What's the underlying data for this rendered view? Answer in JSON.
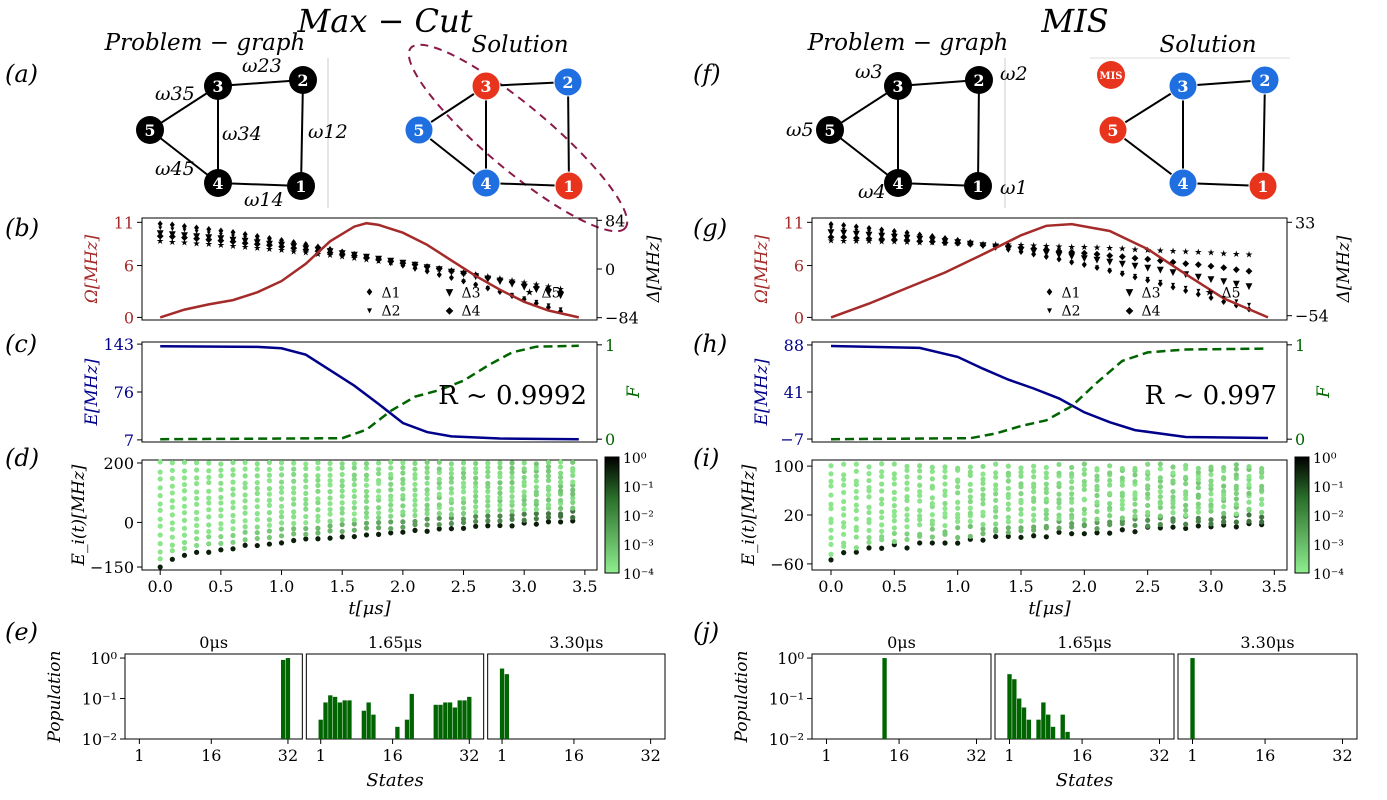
{
  "figure": {
    "left_title": "Max − Cut",
    "right_title": "MIS",
    "problem_graph_label": "Problem − graph",
    "solution_label": "Solution",
    "panel_labels": [
      "(a)",
      "(b)",
      "(c)",
      "(d)",
      "(e)",
      "(f)",
      "(g)",
      "(h)",
      "(i)",
      "(j)"
    ],
    "mis_badge": "MIS"
  },
  "graph_maxcut": {
    "nodes": [
      "1",
      "2",
      "3",
      "4",
      "5"
    ],
    "edges": [
      [
        "1",
        "2"
      ],
      [
        "2",
        "3"
      ],
      [
        "3",
        "4"
      ],
      [
        "3",
        "5"
      ],
      [
        "4",
        "5"
      ],
      [
        "1",
        "4"
      ]
    ],
    "edge_labels": [
      "ω12",
      "ω23",
      "ω34",
      "ω35",
      "ω45",
      "ω14"
    ],
    "solution_colors": {
      "1": "red",
      "2": "blue",
      "3": "red",
      "4": "blue",
      "5": "blue"
    }
  },
  "graph_mis": {
    "nodes": [
      "1",
      "2",
      "3",
      "4",
      "5"
    ],
    "edges": [
      [
        "1",
        "2"
      ],
      [
        "2",
        "3"
      ],
      [
        "3",
        "4"
      ],
      [
        "3",
        "5"
      ],
      [
        "4",
        "5"
      ],
      [
        "1",
        "4"
      ]
    ],
    "node_labels": [
      "ω1",
      "ω2",
      "ω3",
      "ω4",
      "ω5"
    ],
    "solution_colors": {
      "1": "red",
      "2": "blue",
      "3": "blue",
      "4": "blue",
      "5": "red"
    }
  },
  "colors": {
    "omega": "#a52a2a",
    "energy": "#00008b",
    "fidelity": "#006400",
    "bar": "#006400",
    "node_black": "#000000",
    "node_red": "#e8341c",
    "node_blue": "#1f6fe0",
    "ellipse": "#8b1a4a"
  },
  "chart_data": [
    {
      "id": "b",
      "type": "line",
      "left_axis": {
        "label": "Ω[MHz]",
        "ticks": [
          "0",
          "6",
          "11"
        ],
        "range": [
          0,
          11
        ]
      },
      "right_axis": {
        "label": "Δ[MHz]",
        "ticks": [
          "−84",
          "0",
          "84"
        ],
        "range": [
          -84,
          84
        ]
      },
      "x": {
        "range": [
          0,
          3.5
        ]
      },
      "omega_curve": {
        "x": [
          0,
          0.2,
          0.4,
          0.6,
          0.8,
          1.0,
          1.2,
          1.4,
          1.6,
          1.7,
          1.8,
          2.0,
          2.2,
          2.4,
          2.6,
          2.8,
          3.0,
          3.2,
          3.45
        ],
        "y": [
          0,
          0.9,
          1.5,
          2.0,
          2.9,
          4.2,
          6.2,
          8.8,
          10.5,
          10.9,
          10.7,
          9.8,
          8.4,
          6.6,
          4.8,
          3.2,
          1.8,
          0.8,
          0
        ]
      },
      "legend": [
        "Δ1",
        "Δ2",
        "Δ3",
        "Δ4",
        "Δ5"
      ],
      "detuning_start": [
        78,
        72,
        62,
        58,
        48
      ],
      "detuning_end": [
        -84,
        -78,
        -52,
        -46,
        -40
      ]
    },
    {
      "id": "c",
      "type": "line",
      "left_axis": {
        "label": "E[MHz]",
        "ticks": [
          "7",
          "76",
          "143"
        ],
        "range": [
          7,
          143
        ]
      },
      "right_axis": {
        "label": "F",
        "ticks": [
          "0",
          "1"
        ],
        "range": [
          0,
          1
        ]
      },
      "annotation": "R ~ 0.9992",
      "energy": {
        "x": [
          0,
          0.8,
          1.0,
          1.2,
          1.4,
          1.6,
          1.8,
          2.0,
          2.2,
          2.4,
          2.8,
          3.45
        ],
        "y": [
          140,
          139,
          137,
          128,
          106,
          84,
          58,
          31,
          18,
          12,
          9,
          8
        ]
      },
      "fidelity": {
        "x": [
          0,
          1.5,
          1.7,
          1.9,
          2.1,
          2.3,
          2.5,
          2.7,
          2.9,
          3.1,
          3.45
        ],
        "y": [
          0,
          0.01,
          0.1,
          0.3,
          0.45,
          0.52,
          0.62,
          0.78,
          0.92,
          0.98,
          0.99
        ]
      }
    },
    {
      "id": "d",
      "type": "scatter",
      "ylabel": "E_i(t)[MHz]",
      "xlabel": "t[μs]",
      "y_ticks": [
        "−150",
        "0",
        "200"
      ],
      "y_range": [
        -150,
        200
      ],
      "x_ticks": [
        "0.0",
        "0.5",
        "1.0",
        "1.5",
        "2.0",
        "2.5",
        "3.0",
        "3.5"
      ],
      "x_range": [
        0,
        3.5
      ],
      "colorbar_ticks": [
        "10⁰",
        "10⁻¹",
        "10⁻²",
        "10⁻³",
        "10⁻⁴"
      ]
    },
    {
      "id": "e",
      "type": "bar",
      "ylabel": "Population",
      "xlabel": "States",
      "x_ticks": [
        "1",
        "16",
        "32"
      ],
      "y_ticks": [
        "10⁰",
        "10⁻¹",
        "10⁻²"
      ],
      "panels": [
        {
          "title": "0μs",
          "values": {
            "32": 1.0,
            "31": 0.9
          }
        },
        {
          "title": "1.65μs",
          "values": {
            "1": 0.03,
            "2": 0.08,
            "3": 0.12,
            "4": 0.11,
            "5": 0.08,
            "6": 0.09,
            "7": 0.09,
            "10": 0.05,
            "11": 0.08,
            "12": 0.04,
            "17": 0.02,
            "19": 0.03,
            "20": 0.13,
            "25": 0.07,
            "26": 0.07,
            "27": 0.08,
            "28": 0.08,
            "29": 0.06,
            "30": 0.09,
            "31": 0.09,
            "32": 0.11
          }
        },
        {
          "title": "3.30μs",
          "values": {
            "1": 0.55,
            "2": 0.4
          }
        }
      ]
    },
    {
      "id": "g",
      "type": "line",
      "left_axis": {
        "label": "Ω[MHz]",
        "ticks": [
          "0",
          "6",
          "11"
        ],
        "range": [
          0,
          11
        ]
      },
      "right_axis": {
        "label": "Δ[MHz]",
        "ticks": [
          "−54",
          "33"
        ],
        "range": [
          -54,
          33
        ]
      },
      "legend": [
        "Δ1",
        "Δ2",
        "Δ3",
        "Δ4",
        "Δ5"
      ],
      "omega_curve": {
        "x": [
          0,
          0.3,
          0.6,
          0.9,
          1.2,
          1.5,
          1.7,
          1.9,
          2.2,
          2.5,
          2.8,
          3.1,
          3.45
        ],
        "y": [
          0,
          1.6,
          3.4,
          5.2,
          7.3,
          9.5,
          10.6,
          10.8,
          10.0,
          7.9,
          5.0,
          2.2,
          0
        ]
      },
      "detuning_start": [
        31,
        28,
        24,
        20,
        16
      ],
      "detuning_end": [
        -54,
        -48,
        -30,
        -14,
        2
      ]
    },
    {
      "id": "h",
      "type": "line",
      "left_axis": {
        "label": "E[MHz]",
        "ticks": [
          "−7",
          "41",
          "88"
        ],
        "range": [
          -7,
          88
        ]
      },
      "right_axis": {
        "label": "F",
        "ticks": [
          "0",
          "1"
        ],
        "range": [
          0,
          1
        ]
      },
      "annotation": "R ~ 0.997",
      "energy": {
        "x": [
          0,
          0.7,
          1.0,
          1.2,
          1.4,
          1.6,
          1.8,
          2.0,
          2.2,
          2.4,
          2.8,
          3.45
        ],
        "y": [
          87,
          85,
          76,
          64,
          53,
          44,
          34,
          20,
          10,
          2,
          -5,
          -6
        ]
      },
      "fidelity": {
        "x": [
          0,
          1.1,
          1.3,
          1.5,
          1.7,
          1.9,
          2.1,
          2.3,
          2.5,
          2.8,
          3.45
        ],
        "y": [
          0,
          0.01,
          0.06,
          0.14,
          0.2,
          0.35,
          0.6,
          0.83,
          0.92,
          0.95,
          0.96
        ]
      }
    },
    {
      "id": "i",
      "type": "scatter",
      "ylabel": "E_i(t)[MHz]",
      "xlabel": "t[μs]",
      "y_ticks": [
        "−60",
        "20",
        "100"
      ],
      "y_range": [
        -60,
        100
      ],
      "x_ticks": [
        "0.0",
        "0.5",
        "1.0",
        "1.5",
        "2.0",
        "2.5",
        "3.0",
        "3.5"
      ],
      "x_range": [
        0,
        3.5
      ],
      "colorbar_ticks": [
        "10⁰",
        "10⁻¹",
        "10⁻²",
        "10⁻³",
        "10⁻⁴"
      ]
    },
    {
      "id": "j",
      "type": "bar",
      "ylabel": "Population",
      "xlabel": "States",
      "x_ticks": [
        "1",
        "16",
        "32"
      ],
      "y_ticks": [
        "10⁰",
        "10⁻¹",
        "10⁻²"
      ],
      "panels": [
        {
          "title": "0μs",
          "values": {
            "13": 1.0
          }
        },
        {
          "title": "1.65μs",
          "values": {
            "1": 0.4,
            "2": 0.3,
            "3": 0.1,
            "4": 0.06,
            "5": 0.03,
            "7": 0.03,
            "8": 0.08,
            "9": 0.04,
            "10": 0.02,
            "12": 0.04,
            "13": 0.015
          }
        },
        {
          "title": "3.30μs",
          "values": {
            "1": 1.0
          }
        }
      ]
    }
  ]
}
